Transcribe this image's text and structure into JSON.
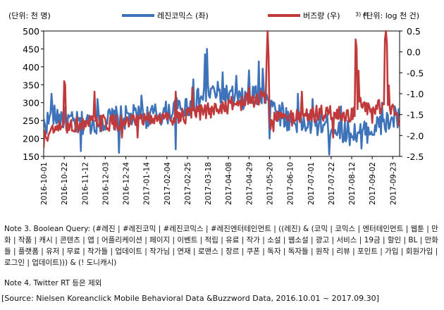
{
  "chart_data": {
    "type": "line",
    "left_unit": "(단위: 천 명)",
    "right_unit": "(단위: log 천 건)",
    "legend": [
      {
        "label": "레진코믹스 (좌)",
        "superscript": "",
        "color": "#3f73b9"
      },
      {
        "label": "버즈량 (우)",
        "superscript": "3)  4)",
        "color": "#c0393b"
      }
    ],
    "ylim_left": [
      150,
      500
    ],
    "yticks_left": [
      "500",
      "450",
      "400",
      "350",
      "300",
      "250",
      "200",
      "150"
    ],
    "ylim_right": [
      -2.5,
      0.5
    ],
    "yticks_right": [
      "0.5",
      "0.0",
      "-0.5",
      "-1.0",
      "-1.5",
      "-2.0",
      "-2.5"
    ],
    "xticks": [
      "2016-10-01",
      "2016-10-22",
      "2016-11-12",
      "2016-12-03",
      "2016-12-24",
      "2017-01-14",
      "2017-02-04",
      "2017-02-25",
      "2017-03-18",
      "2017-04-08",
      "2017-04-29",
      "2017-05-20",
      "2017-06-10",
      "2017-07-01",
      "2017-07-22",
      "2017-08-12",
      "2017-09-02",
      "2017-09-23"
    ],
    "x_start": "2016-10-01",
    "x_end": "2017-09-30",
    "series": [
      {
        "name": "레진코믹스 (좌)",
        "axis": "left",
        "color": "#3f73b9",
        "knots": [
          [
            "2016-10-01",
            240
          ],
          [
            "2016-10-15",
            265
          ],
          [
            "2016-11-01",
            240
          ],
          [
            "2016-11-20",
            245
          ],
          [
            "2016-12-10",
            255
          ],
          [
            "2016-12-31",
            260
          ],
          [
            "2017-01-15",
            262
          ],
          [
            "2017-02-01",
            270
          ],
          [
            "2017-02-20",
            285
          ],
          [
            "2017-03-05",
            300
          ],
          [
            "2017-03-20",
            330
          ],
          [
            "2017-04-05",
            320
          ],
          [
            "2017-04-20",
            305
          ],
          [
            "2017-05-05",
            320
          ],
          [
            "2017-05-18",
            330
          ],
          [
            "2017-05-25",
            280
          ],
          [
            "2017-06-10",
            250
          ],
          [
            "2017-06-25",
            240
          ],
          [
            "2017-07-10",
            240
          ],
          [
            "2017-07-25",
            232
          ],
          [
            "2017-08-10",
            215
          ],
          [
            "2017-08-25",
            218
          ],
          [
            "2017-09-05",
            230
          ],
          [
            "2017-09-20",
            245
          ],
          [
            "2017-09-30",
            255
          ]
        ],
        "spikes": [
          [
            "2016-10-09",
            325
          ],
          [
            "2016-11-08",
            165
          ],
          [
            "2016-11-25",
            310
          ],
          [
            "2016-12-17",
            160
          ],
          [
            "2017-01-09",
            320
          ],
          [
            "2017-02-13",
            170
          ],
          [
            "2017-03-03",
            365
          ],
          [
            "2017-03-15",
            435
          ],
          [
            "2017-03-17",
            450
          ],
          [
            "2017-04-02",
            385
          ],
          [
            "2017-04-16",
            375
          ],
          [
            "2017-04-29",
            390
          ],
          [
            "2017-05-09",
            415
          ],
          [
            "2017-05-13",
            395
          ],
          [
            "2017-05-20",
            200
          ],
          [
            "2017-06-02",
            300
          ],
          [
            "2017-06-18",
            325
          ],
          [
            "2017-07-03",
            310
          ],
          [
            "2017-07-20",
            155
          ],
          [
            "2017-08-01",
            290
          ],
          [
            "2017-08-22",
            172
          ],
          [
            "2017-09-12",
            300
          ],
          [
            "2017-09-25",
            290
          ]
        ],
        "noise": 34
      },
      {
        "name": "버즈량 (우)",
        "axis": "right",
        "color": "#c0393b",
        "knots": [
          [
            "2016-10-01",
            -2.05
          ],
          [
            "2016-10-15",
            -1.85
          ],
          [
            "2016-11-01",
            -1.75
          ],
          [
            "2016-11-20",
            -1.7
          ],
          [
            "2016-12-10",
            -1.7
          ],
          [
            "2016-12-31",
            -1.7
          ],
          [
            "2017-01-15",
            -1.62
          ],
          [
            "2017-02-01",
            -1.58
          ],
          [
            "2017-02-20",
            -1.55
          ],
          [
            "2017-03-05",
            -1.5
          ],
          [
            "2017-03-20",
            -1.4
          ],
          [
            "2017-04-05",
            -1.3
          ],
          [
            "2017-04-20",
            -1.22
          ],
          [
            "2017-05-05",
            -1.15
          ],
          [
            "2017-05-15",
            -1.05
          ],
          [
            "2017-05-22",
            -1.55
          ],
          [
            "2017-06-10",
            -1.58
          ],
          [
            "2017-06-25",
            -1.5
          ],
          [
            "2017-07-10",
            -1.48
          ],
          [
            "2017-07-25",
            -1.48
          ],
          [
            "2017-08-10",
            -1.52
          ],
          [
            "2017-08-20",
            -1.3
          ],
          [
            "2017-09-01",
            -1.4
          ],
          [
            "2017-09-15",
            -1.25
          ],
          [
            "2017-09-30",
            -1.6
          ]
        ],
        "spikes": [
          [
            "2016-10-01",
            -2.3
          ],
          [
            "2016-10-22",
            -0.7
          ],
          [
            "2016-10-23",
            -0.8
          ],
          [
            "2016-11-22",
            -0.95
          ],
          [
            "2016-12-20",
            -2.05
          ],
          [
            "2017-01-05",
            -2.05
          ],
          [
            "2017-02-13",
            -0.95
          ],
          [
            "2017-03-02",
            -0.85
          ],
          [
            "2017-04-29",
            -0.85
          ],
          [
            "2017-05-17",
            -0.2
          ],
          [
            "2017-05-18",
            0.5
          ],
          [
            "2017-05-19",
            -0.1
          ],
          [
            "2017-05-21",
            -1.85
          ],
          [
            "2017-05-24",
            -1.9
          ],
          [
            "2017-06-22",
            -0.95
          ],
          [
            "2017-07-24",
            -2.05
          ],
          [
            "2017-08-16",
            0.3
          ],
          [
            "2017-08-17",
            0.1
          ],
          [
            "2017-08-19",
            -0.45
          ],
          [
            "2017-08-21",
            -1.1
          ],
          [
            "2017-09-02",
            -1.7
          ],
          [
            "2017-09-15",
            0.3
          ],
          [
            "2017-09-16",
            0.5
          ],
          [
            "2017-09-17",
            0.2
          ],
          [
            "2017-09-19",
            -0.8
          ]
        ],
        "noise": 0.2
      }
    ]
  },
  "notes": {
    "note3": "Note 3. Boolean Query: (#레진 | #레진코믹 | #레진코믹스 | #레진엔터테인먼트 | ((레진) & (코믹 | 코믹스 | 엔터테인먼트 | 웹툰 | 만화 | 작품 | 캐시 | 콘텐츠 | 앱 | 어플리케이션 | 페이지 | 이벤트 | 적립 | 유료 | 작가 | 소설 | 웹소설 | 광고 | 서비스 | 19금 | 할인 | BL | 만화들 | 플랫폼 | 유저 | 무료 | 작가들 | 업데이트 | 작가님 | 연재 | 로맨스 | 장르 | 쿠폰 | 독자 | 독자들 | 원작 | 리뷰 | 포인트 | 가입 | 회원가입 | 로그인 | 업데이트))) & (! 도니캐시)",
    "note4": "Note 4. Twitter RT 등은 제외",
    "source": "[Source: Nielsen Koreanclick Mobile Behavioral Data &Buzzword Data, 2016.10.01 ~ 2017.09.30]"
  }
}
